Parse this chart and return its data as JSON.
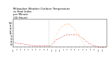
{
  "title": "Milwaukee Weather Outdoor Temperature\nvs Heat Index\nper Minute\n(24 Hours)",
  "title_fontsize": 2.8,
  "background_color": "#ffffff",
  "temp_color": "#cc0000",
  "heat_color": "#ff8800",
  "vline_x": 36,
  "vline_color": "#888888",
  "vline_style": "dotted",
  "xlim": [
    0,
    96
  ],
  "ylim": [
    55,
    108
  ],
  "yticks": [
    60,
    65,
    70,
    75,
    80,
    85,
    90,
    95,
    100
  ],
  "ytick_labels": [
    "60",
    "65",
    "70",
    "75",
    "80",
    "85",
    "90",
    "95",
    "100"
  ],
  "xtick_positions": [
    0,
    4,
    8,
    12,
    16,
    20,
    24,
    28,
    32,
    36,
    40,
    44,
    48,
    52,
    56,
    60,
    64,
    68,
    72,
    76,
    80,
    84,
    88,
    92
  ],
  "xtick_labels": [
    "12a",
    "1a",
    "2a",
    "3a",
    "4a",
    "5a",
    "6a",
    "7a",
    "8a",
    "9a",
    "10a",
    "11a",
    "12p",
    "1p",
    "2p",
    "3p",
    "4p",
    "5p",
    "6p",
    "7p",
    "8p",
    "9p",
    "10p",
    "11p"
  ],
  "temp_x": [
    0,
    1,
    2,
    3,
    4,
    5,
    6,
    7,
    8,
    9,
    10,
    11,
    12,
    13,
    14,
    15,
    16,
    17,
    18,
    19,
    20,
    21,
    22,
    23,
    24,
    25,
    26,
    27,
    28,
    29,
    30,
    31,
    32,
    33,
    34,
    35,
    36,
    37,
    38,
    39,
    40,
    41,
    42,
    43,
    44,
    45,
    46,
    47,
    48,
    49,
    50,
    51,
    52,
    53,
    54,
    55,
    56,
    57,
    58,
    59,
    60,
    61,
    62,
    63,
    64,
    65,
    66,
    67,
    68,
    69,
    70,
    71,
    72,
    73,
    74,
    75,
    76,
    77,
    78,
    79,
    80,
    81,
    82,
    83,
    84,
    85,
    86,
    87,
    88,
    89,
    90,
    91,
    92,
    93,
    94,
    95
  ],
  "temp_y": [
    64,
    64,
    63,
    63,
    63,
    62,
    62,
    62,
    61,
    61,
    61,
    60,
    60,
    60,
    60,
    59,
    59,
    59,
    59,
    59,
    58,
    58,
    58,
    58,
    58,
    58,
    57,
    57,
    57,
    57,
    57,
    57,
    57,
    57,
    57,
    57,
    57,
    57,
    58,
    59,
    61,
    63,
    65,
    67,
    69,
    70,
    71,
    72,
    73,
    74,
    75,
    76,
    77,
    77,
    78,
    78,
    79,
    79,
    79,
    79,
    79,
    79,
    79,
    79,
    79,
    78,
    78,
    77,
    76,
    75,
    74,
    72,
    71,
    69,
    67,
    66,
    65,
    63,
    62,
    61,
    60,
    59,
    58,
    57,
    57,
    56,
    56,
    55,
    55,
    55,
    55,
    55,
    55,
    55,
    55,
    55
  ],
  "heat_x": [
    40,
    41,
    42,
    43,
    44,
    45,
    46,
    47,
    48,
    49,
    50,
    51,
    52,
    53,
    54,
    55,
    56,
    57,
    58,
    59,
    60,
    61,
    62,
    63,
    64,
    65,
    66,
    67,
    68,
    69,
    70,
    71,
    72,
    73,
    74
  ],
  "heat_y": [
    62,
    66,
    70,
    75,
    80,
    83,
    86,
    88,
    91,
    93,
    95,
    96,
    97,
    98,
    99,
    100,
    100,
    99,
    98,
    96,
    95,
    93,
    91,
    88,
    86,
    83,
    80,
    77,
    74,
    71,
    68,
    65,
    62,
    59,
    57
  ],
  "marker_size": 0.6,
  "marker": "."
}
